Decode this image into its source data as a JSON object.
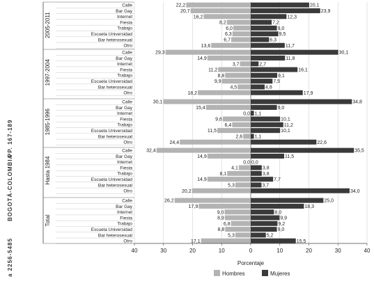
{
  "margin_text": {
    "journal": "BOGOTÁ-COLOMBIA",
    "pages": "PP. 167-189",
    "issn": "a 2256-5485"
  },
  "chart_data": {
    "type": "bar",
    "orientation": "horizontal",
    "layout": "diverging",
    "xlabel": "Porcentaje",
    "ylabel": "",
    "xlim": [
      -40,
      40
    ],
    "x_ticks": [
      40,
      30,
      20,
      10,
      0,
      10,
      20,
      30,
      40
    ],
    "grid": true,
    "legend_position": "bottom",
    "colors": {
      "Hombres": "#b3b3b3",
      "Mujeres": "#3a3a3a"
    },
    "series_names": [
      "Hombres",
      "Mujeres"
    ],
    "groups": [
      {
        "label": "2005-2011",
        "categories": [
          "Calle",
          "Bar Gay",
          "Internet",
          "Fiesta",
          "Trabajo",
          "Escuela Universidad",
          "Bar heterosexual",
          "Otro"
        ],
        "hombres": [
          22.2,
          20.7,
          16.2,
          8.2,
          6.0,
          6.3,
          6.7,
          13.6
        ],
        "mujeres": [
          20.1,
          23.9,
          12.3,
          7.2,
          9.0,
          9.5,
          6.3,
          11.7
        ],
        "hombres_labels": [
          "22,2",
          "20,7",
          "16,2",
          "8,2",
          "6,0",
          "6,3",
          "6,7",
          "13,6"
        ],
        "mujeres_labels": [
          "20,1",
          "23,9",
          "12,3",
          "7,2",
          "9,0",
          "9,5",
          "6,3",
          "11,7"
        ]
      },
      {
        "label": "1997-2004",
        "categories": [
          "Calle",
          "Bar Gay",
          "Internet",
          "Fiesta",
          "Trabajo",
          "Escuela Universidad",
          "Bar heterosexual",
          "Otro"
        ],
        "hombres": [
          29.3,
          14.9,
          3.7,
          11.2,
          8.8,
          9.9,
          4.5,
          18.2
        ],
        "mujeres": [
          30.1,
          11.8,
          2.7,
          16.1,
          9.1,
          7.5,
          4.8,
          17.9
        ],
        "hombres_labels": [
          "29,3",
          "14,9",
          "3,7",
          "11,2",
          "8,8",
          "9,9",
          "4,5",
          "18,2"
        ],
        "mujeres_labels": [
          "30,1",
          "11,8",
          "2,7",
          "16,1",
          "9,1",
          "7,5",
          "4,8",
          "17,9"
        ]
      },
      {
        "label": "1985-1996",
        "categories": [
          "Calle",
          "Bar Gay",
          "Internet",
          "Fiesta",
          "Trabajo",
          "Escuela Universidad",
          "Bar heterosexual",
          "Otro"
        ],
        "hombres": [
          30.1,
          15.4,
          0.0,
          9.6,
          6.4,
          11.5,
          2.6,
          24.4
        ],
        "mujeres": [
          34.8,
          9.0,
          1.1,
          10.1,
          11.2,
          10.1,
          1.1,
          22.6
        ],
        "hombres_labels": [
          "30,1",
          "15,4",
          "0,0",
          "9,6",
          "6,4",
          "11,5",
          "2,6",
          "24,4"
        ],
        "mujeres_labels": [
          "34,8",
          "9,0",
          "1,1",
          "10,1",
          "11,2",
          "10,1",
          "1,1",
          "22,6"
        ]
      },
      {
        "label": "Hasta 1984",
        "categories": [
          "Calle",
          "Bar Gay",
          "Internet",
          "Fiesta",
          "Trabajo",
          "Escuela Universidad",
          "Bar heterosexual",
          "Otro"
        ],
        "hombres": [
          32.4,
          14.9,
          0.0,
          4.1,
          8.1,
          14.9,
          5.3,
          20.2
        ],
        "mujeres": [
          35.5,
          11.5,
          0.0,
          3.8,
          3.8,
          7.7,
          3.7,
          34.0
        ],
        "hombres_labels": [
          "32,4",
          "14,9",
          "0,0",
          "4,1",
          "8,1",
          "14,9",
          "5,3",
          "20,2"
        ],
        "mujeres_labels": [
          "35,5",
          "11,5",
          "0,0",
          "3,8",
          "3,8",
          "7,7",
          "3,7",
          "34,0"
        ]
      },
      {
        "label": "Total",
        "categories": [
          "Calle",
          "Bar Gay",
          "Internet",
          "Fiesta",
          "Trabajo",
          "Escuela Universidad",
          "Bar heterosexual",
          "Otro"
        ],
        "hombres": [
          26.2,
          17.9,
          9.0,
          8.9,
          6.8,
          8.8,
          5.3,
          17.1
        ],
        "mujeres": [
          25.0,
          18.3,
          8.0,
          9.9,
          9.2,
          9.0,
          5.2,
          15.5
        ],
        "hombres_labels": [
          "26,2",
          "17,9",
          "9,0",
          "8,9",
          "6,8",
          "8,8",
          "5,3",
          "17,1"
        ],
        "mujeres_labels": [
          "25,0",
          "18,3",
          "8,0",
          "9,9",
          "9,2",
          "9,0",
          "5,2",
          "15,5"
        ]
      }
    ]
  }
}
